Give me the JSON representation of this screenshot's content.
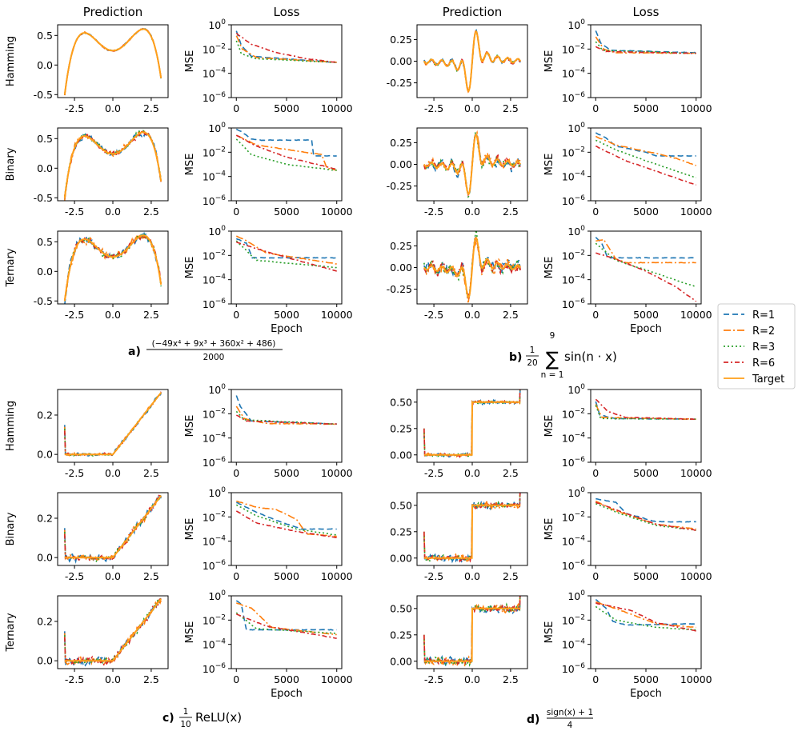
{
  "chart_data": {
    "type": "line",
    "column_titles": {
      "prediction": "Prediction",
      "loss": "Loss"
    },
    "row_labels": [
      "Hamming",
      "Binary",
      "Ternary"
    ],
    "loss_ylabel": "MSE",
    "loss_xlabel": "Epoch",
    "prediction_xticks": [
      "-2.5",
      "0.0",
      "2.5"
    ],
    "loss_xticks": [
      "0",
      "5000",
      "10000"
    ],
    "loss_yticks": [
      {
        "base": "10",
        "exp": "0"
      },
      {
        "base": "10",
        "exp": "-2"
      },
      {
        "base": "10",
        "exp": "-4"
      },
      {
        "base": "10",
        "exp": "-6"
      }
    ],
    "loss_ylim_log10": [
      -6,
      0
    ],
    "prediction_xlim": [
      -3.6,
      3.6
    ],
    "legend": [
      {
        "label": "R=1",
        "color": "#1f77b4",
        "dash": "7,4"
      },
      {
        "label": "R=2",
        "color": "#ff7f0e",
        "dash": "9,3,2,3"
      },
      {
        "label": "R=3",
        "color": "#2ca02c",
        "dash": "2,3"
      },
      {
        "label": "R=6",
        "color": "#d62728",
        "dash": "6,3,2,3"
      },
      {
        "label": "Target",
        "color": "#ff9f1a",
        "dash": ""
      }
    ],
    "panels": [
      {
        "id": "a",
        "caption_letter": "a)",
        "caption_math": {
          "num": "(−49x⁴ + 9x³ + 360x² + 486)",
          "den": "2000"
        },
        "target": "poly",
        "pred_ylim": [
          -0.55,
          0.68
        ],
        "pred_yticks": [
          "0.5",
          "0.0",
          "-0.5"
        ],
        "noise": [
          0.01,
          0.04,
          0.05
        ],
        "loss": [
          {
            "R1": [
              [
                0,
                -0.5
              ],
              [
                500,
                -1.7
              ],
              [
                1500,
                -2.6
              ],
              [
                10000,
                -3.1
              ]
            ],
            "R2": [
              [
                0,
                -0.9
              ],
              [
                600,
                -2.0
              ],
              [
                2000,
                -2.7
              ],
              [
                10000,
                -3.1
              ]
            ],
            "R3": [
              [
                0,
                -1.3
              ],
              [
                500,
                -2.4
              ],
              [
                2000,
                -2.8
              ],
              [
                10000,
                -3.1
              ]
            ],
            "R6": [
              [
                0,
                -0.7
              ],
              [
                1500,
                -1.6
              ],
              [
                4000,
                -2.3
              ],
              [
                7000,
                -2.8
              ],
              [
                10000,
                -3.1
              ]
            ]
          },
          {
            "R1": [
              [
                0,
                -0.1
              ],
              [
                500,
                -0.3
              ],
              [
                1500,
                -0.9
              ],
              [
                2500,
                -1.0
              ],
              [
                7500,
                -1.0
              ],
              [
                7700,
                -2.3
              ],
              [
                10000,
                -2.3
              ]
            ],
            "R2": [
              [
                0,
                -0.6
              ],
              [
                2000,
                -1.4
              ],
              [
                6000,
                -1.9
              ],
              [
                8500,
                -2.2
              ],
              [
                9000,
                -3.3
              ],
              [
                10000,
                -3.5
              ]
            ],
            "R3": [
              [
                0,
                -0.9
              ],
              [
                1500,
                -2.2
              ],
              [
                5000,
                -3.0
              ],
              [
                10000,
                -3.5
              ]
            ],
            "R6": [
              [
                0,
                -0.6
              ],
              [
                2000,
                -1.5
              ],
              [
                5000,
                -2.4
              ],
              [
                10000,
                -3.4
              ]
            ]
          },
          {
            "R1": [
              [
                0,
                -0.6
              ],
              [
                1000,
                -1.0
              ],
              [
                1600,
                -2.2
              ],
              [
                10000,
                -2.2
              ]
            ],
            "R2": [
              [
                0,
                -0.4
              ],
              [
                800,
                -0.7
              ],
              [
                3000,
                -1.8
              ],
              [
                10000,
                -2.7
              ]
            ],
            "R3": [
              [
                0,
                -0.8
              ],
              [
                2000,
                -2.4
              ],
              [
                10000,
                -3.0
              ]
            ],
            "R6": [
              [
                0,
                -0.9
              ],
              [
                3000,
                -1.7
              ],
              [
                10000,
                -3.3
              ]
            ]
          }
        ]
      },
      {
        "id": "b",
        "caption_letter": "b)",
        "caption_math": {
          "frac_num": "1",
          "frac_den": "20",
          "sum_top": "9",
          "sum_bottom": "n = 1",
          "body": "sin(n · x)"
        },
        "target": "sinsum",
        "pred_ylim": [
          -0.42,
          0.42
        ],
        "pred_yticks": [
          "0.25",
          "0.00",
          "-0.25"
        ],
        "noise": [
          0.015,
          0.04,
          0.06
        ],
        "loss": [
          {
            "R1": [
              [
                0,
                -0.5
              ],
              [
                500,
                -1.5
              ],
              [
                1500,
                -2.1
              ],
              [
                10000,
                -2.3
              ]
            ],
            "R2": [
              [
                0,
                -1.0
              ],
              [
                800,
                -2.0
              ],
              [
                2000,
                -2.3
              ],
              [
                10000,
                -2.35
              ]
            ],
            "R3": [
              [
                0,
                -1.4
              ],
              [
                700,
                -2.1
              ],
              [
                10000,
                -2.35
              ]
            ],
            "R6": [
              [
                0,
                -1.8
              ],
              [
                1000,
                -2.2
              ],
              [
                10000,
                -2.35
              ]
            ]
          },
          {
            "R1": [
              [
                0,
                -0.4
              ],
              [
                1000,
                -0.8
              ],
              [
                2000,
                -1.5
              ],
              [
                5000,
                -2.0
              ],
              [
                6000,
                -2.3
              ],
              [
                10000,
                -2.3
              ]
            ],
            "R2": [
              [
                0,
                -0.7
              ],
              [
                2000,
                -1.4
              ],
              [
                6000,
                -2.1
              ],
              [
                8000,
                -2.5
              ],
              [
                10000,
                -3.1
              ]
            ],
            "R3": [
              [
                0,
                -1.0
              ],
              [
                2000,
                -1.8
              ],
              [
                5000,
                -2.7
              ],
              [
                10000,
                -4.1
              ]
            ],
            "R6": [
              [
                0,
                -1.5
              ],
              [
                3000,
                -2.7
              ],
              [
                10000,
                -4.7
              ]
            ]
          },
          {
            "R1": [
              [
                0,
                -0.5
              ],
              [
                600,
                -1.0
              ],
              [
                1200,
                -2.2
              ],
              [
                10000,
                -2.2
              ]
            ],
            "R2": [
              [
                0,
                -0.8
              ],
              [
                800,
                -0.7
              ],
              [
                2000,
                -2.3
              ],
              [
                3000,
                -2.6
              ],
              [
                10000,
                -2.6
              ]
            ],
            "R3": [
              [
                0,
                -1.0
              ],
              [
                2000,
                -2.4
              ],
              [
                5000,
                -3.2
              ],
              [
                10000,
                -4.6
              ]
            ],
            "R6": [
              [
                0,
                -1.8
              ],
              [
                2000,
                -2.3
              ],
              [
                5000,
                -3.3
              ],
              [
                8000,
                -4.6
              ],
              [
                10000,
                -5.8
              ]
            ]
          }
        ]
      },
      {
        "id": "c",
        "caption_letter": "c)",
        "caption_math": {
          "frac_num": "1",
          "frac_den": "10",
          "body": "ReLU(x)"
        },
        "target": "relu",
        "pred_ylim": [
          -0.04,
          0.33
        ],
        "pred_yticks": [
          "0.2",
          "0.0"
        ],
        "noise": [
          0.006,
          0.012,
          0.014
        ],
        "loss": [
          {
            "R1": [
              [
                0,
                -0.5
              ],
              [
                400,
                -1.4
              ],
              [
                1500,
                -2.6
              ],
              [
                10000,
                -2.85
              ]
            ],
            "R2": [
              [
                0,
                -1.4
              ],
              [
                800,
                -2.4
              ],
              [
                3000,
                -2.8
              ],
              [
                10000,
                -2.85
              ]
            ],
            "R3": [
              [
                0,
                -1.8
              ],
              [
                800,
                -2.5
              ],
              [
                10000,
                -2.85
              ]
            ],
            "R6": [
              [
                0,
                -2.1
              ],
              [
                1000,
                -2.6
              ],
              [
                10000,
                -2.85
              ]
            ]
          },
          {
            "R1": [
              [
                0,
                -0.8
              ],
              [
                2000,
                -1.6
              ],
              [
                4000,
                -2.3
              ],
              [
                6500,
                -3.0
              ],
              [
                10000,
                -3.0
              ]
            ],
            "R2": [
              [
                0,
                -0.7
              ],
              [
                2000,
                -1.2
              ],
              [
                4000,
                -1.4
              ],
              [
                6000,
                -2.2
              ],
              [
                7000,
                -3.4
              ],
              [
                10000,
                -3.6
              ]
            ],
            "R3": [
              [
                0,
                -1.0
              ],
              [
                2000,
                -1.9
              ],
              [
                6000,
                -3.0
              ],
              [
                10000,
                -3.5
              ]
            ],
            "R6": [
              [
                0,
                -1.5
              ],
              [
                2000,
                -2.5
              ],
              [
                6000,
                -3.2
              ],
              [
                10000,
                -3.7
              ]
            ]
          },
          {
            "R1": [
              [
                0,
                -0.4
              ],
              [
                500,
                -0.7
              ],
              [
                1000,
                -2.8
              ],
              [
                10000,
                -2.8
              ]
            ],
            "R2": [
              [
                0,
                -0.6
              ],
              [
                1500,
                -1.0
              ],
              [
                3500,
                -2.6
              ],
              [
                10000,
                -3.2
              ]
            ],
            "R3": [
              [
                0,
                -1.4
              ],
              [
                2000,
                -2.7
              ],
              [
                10000,
                -3.1
              ]
            ],
            "R6": [
              [
                0,
                -1.5
              ],
              [
                3000,
                -2.5
              ],
              [
                10000,
                -3.5
              ]
            ]
          }
        ]
      },
      {
        "id": "d",
        "caption_letter": "d)",
        "caption_math": {
          "num": "sign(x) + 1",
          "den": "4"
        },
        "target": "step",
        "pred_ylim": [
          -0.07,
          0.62
        ],
        "pred_yticks": [
          "0.50",
          "0.25",
          "0.00"
        ],
        "noise": [
          0.012,
          0.025,
          0.03
        ],
        "loss": [
          {
            "R1": [
              [
                0,
                -1.0
              ],
              [
                400,
                -2.1
              ],
              [
                2000,
                -2.4
              ],
              [
                10000,
                -2.45
              ]
            ],
            "R2": [
              [
                0,
                -1.2
              ],
              [
                600,
                -2.3
              ],
              [
                10000,
                -2.45
              ]
            ],
            "R3": [
              [
                0,
                -1.3
              ],
              [
                500,
                -2.4
              ],
              [
                10000,
                -2.45
              ]
            ],
            "R6": [
              [
                0,
                -0.8
              ],
              [
                1200,
                -1.8
              ],
              [
                3000,
                -2.3
              ],
              [
                10000,
                -2.45
              ]
            ]
          },
          {
            "R1": [
              [
                0,
                -0.5
              ],
              [
                2000,
                -0.8
              ],
              [
                3000,
                -1.7
              ],
              [
                6000,
                -2.4
              ],
              [
                10000,
                -2.4
              ]
            ],
            "R2": [
              [
                0,
                -0.7
              ],
              [
                2000,
                -1.5
              ],
              [
                6000,
                -2.6
              ],
              [
                10000,
                -3.0
              ]
            ],
            "R3": [
              [
                0,
                -0.9
              ],
              [
                2000,
                -1.6
              ],
              [
                6000,
                -2.7
              ],
              [
                10000,
                -3.1
              ]
            ],
            "R6": [
              [
                0,
                -0.8
              ],
              [
                3000,
                -1.7
              ],
              [
                6000,
                -2.6
              ],
              [
                10000,
                -3.1
              ]
            ]
          },
          {
            "R1": [
              [
                0,
                -0.3
              ],
              [
                1000,
                -1.0
              ],
              [
                1700,
                -2.1
              ],
              [
                3000,
                -2.4
              ],
              [
                10000,
                -2.3
              ]
            ],
            "R2": [
              [
                0,
                -0.5
              ],
              [
                2500,
                -1.2
              ],
              [
                6000,
                -2.3
              ],
              [
                10000,
                -2.6
              ]
            ],
            "R3": [
              [
                0,
                -0.9
              ],
              [
                2000,
                -2.0
              ],
              [
                6000,
                -2.6
              ],
              [
                10000,
                -2.8
              ]
            ],
            "R6": [
              [
                0,
                -0.6
              ],
              [
                3500,
                -1.2
              ],
              [
                6000,
                -2.2
              ],
              [
                10000,
                -2.9
              ]
            ]
          }
        ]
      }
    ]
  }
}
